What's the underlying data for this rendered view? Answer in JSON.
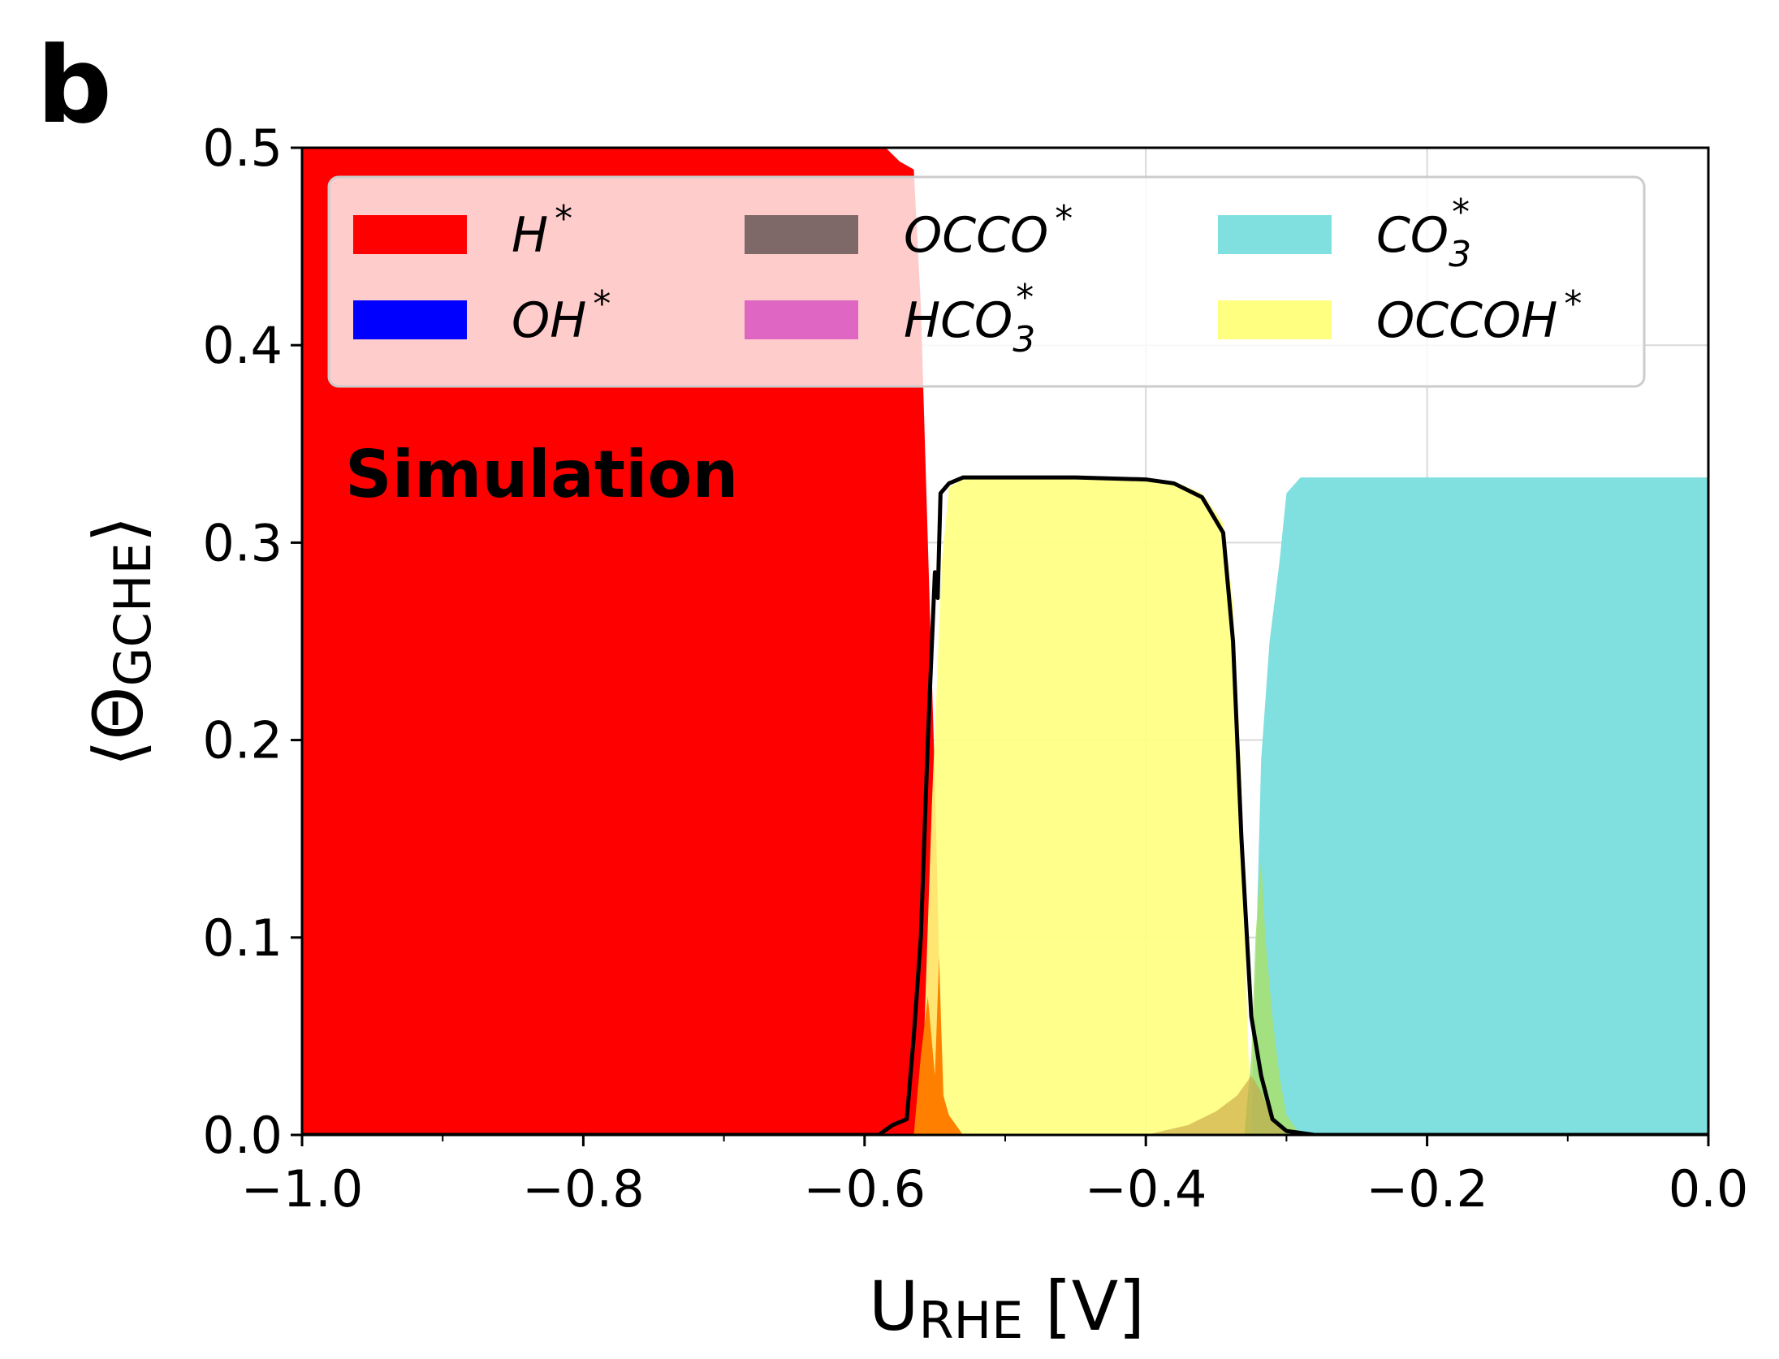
{
  "panel_label": "b",
  "chart_data": {
    "type": "area",
    "title": "",
    "xlabel": {
      "main": "U",
      "sub": "RHE",
      "suffix": " [V]"
    },
    "ylabel": {
      "open": "⟨Θ",
      "sub": "GCHE",
      "close": "⟩"
    },
    "xlim": [
      -1.0,
      0.0
    ],
    "ylim": [
      0.0,
      0.5
    ],
    "grid": true,
    "legend_placement": "top",
    "xticks": [
      -1.0,
      -0.8,
      -0.6,
      -0.4,
      -0.2,
      0.0
    ],
    "xtick_labels": [
      "−1.0",
      "−0.8",
      "−0.6",
      "−0.4",
      "−0.2",
      "0.0"
    ],
    "yticks": [
      0.0,
      0.1,
      0.2,
      0.3,
      0.4,
      0.5
    ],
    "ytick_labels": [
      "0.0",
      "0.1",
      "0.2",
      "0.3",
      "0.4",
      "0.5"
    ],
    "annotation": "Simulation",
    "legend": [
      {
        "id": "H",
        "base": "H",
        "sub": "",
        "sup": "*",
        "color": "#ff0000"
      },
      {
        "id": "OH",
        "base": "OH",
        "sub": "",
        "sup": "*",
        "color": "#0000ff"
      },
      {
        "id": "OCCO",
        "base": "OCCO",
        "sub": "",
        "sup": "*",
        "color": "#7f6868"
      },
      {
        "id": "HCO3",
        "base": "HCO",
        "sub": "3",
        "sup": "*",
        "color": "#e066c4"
      },
      {
        "id": "CO3",
        "base": "CO",
        "sub": "3",
        "sup": "*",
        "color": "#80dfdf"
      },
      {
        "id": "OCCOH",
        "base": "OCCOH",
        "sub": "",
        "sup": "*",
        "color": "#ffff80"
      }
    ],
    "series": [
      {
        "id": "H",
        "color": "#ff0000",
        "opacity": 1.0,
        "points": [
          [
            -1.0,
            0.5
          ],
          [
            -0.585,
            0.5
          ],
          [
            -0.575,
            0.493
          ],
          [
            -0.565,
            0.489
          ],
          [
            -0.56,
            0.42
          ],
          [
            -0.555,
            0.3
          ],
          [
            -0.55,
            0.18
          ],
          [
            -0.546,
            0.06
          ],
          [
            -0.542,
            0.0
          ]
        ]
      },
      {
        "id": "CO3",
        "color": "#80dfdf",
        "opacity": 1.0,
        "points": [
          [
            -0.325,
            0.0
          ],
          [
            -0.318,
            0.19
          ],
          [
            -0.312,
            0.25
          ],
          [
            -0.305,
            0.29
          ],
          [
            -0.3,
            0.325
          ],
          [
            -0.29,
            0.333
          ],
          [
            0.0,
            0.333
          ]
        ]
      },
      {
        "id": "OCCOH",
        "color": "#ffff80",
        "opacity": 0.9,
        "points": [
          [
            -0.56,
            0.0
          ],
          [
            -0.552,
            0.17
          ],
          [
            -0.545,
            0.29
          ],
          [
            -0.54,
            0.328
          ],
          [
            -0.53,
            0.332
          ],
          [
            -0.5,
            0.333
          ],
          [
            -0.4,
            0.333
          ],
          [
            -0.38,
            0.331
          ],
          [
            -0.36,
            0.325
          ],
          [
            -0.345,
            0.31
          ],
          [
            -0.338,
            0.27
          ],
          [
            -0.332,
            0.18
          ],
          [
            -0.328,
            0.06
          ],
          [
            -0.325,
            0.0
          ]
        ]
      },
      {
        "id": "CO3_overlap",
        "color": "#a8e070",
        "opacity": 0.85,
        "points": [
          [
            -0.33,
            0.0
          ],
          [
            -0.325,
            0.04
          ],
          [
            -0.322,
            0.1
          ],
          [
            -0.318,
            0.14
          ],
          [
            -0.315,
            0.1
          ],
          [
            -0.31,
            0.06
          ],
          [
            -0.305,
            0.03
          ],
          [
            -0.3,
            0.01
          ],
          [
            -0.29,
            0.0
          ]
        ]
      },
      {
        "id": "OCCO_tail",
        "color": "#c8a040",
        "opacity": 0.6,
        "points": [
          [
            -0.4,
            0.0
          ],
          [
            -0.37,
            0.005
          ],
          [
            -0.35,
            0.012
          ],
          [
            -0.335,
            0.02
          ],
          [
            -0.325,
            0.03
          ],
          [
            -0.318,
            0.022
          ],
          [
            -0.31,
            0.008
          ],
          [
            -0.3,
            0.0
          ]
        ]
      },
      {
        "id": "H_overlap",
        "color": "#ff8000",
        "opacity": 1.0,
        "points": [
          [
            -0.565,
            0.0
          ],
          [
            -0.56,
            0.04
          ],
          [
            -0.555,
            0.07
          ],
          [
            -0.55,
            0.03
          ],
          [
            -0.547,
            0.09
          ],
          [
            -0.544,
            0.02
          ],
          [
            -0.54,
            0.01
          ],
          [
            -0.53,
            0.0
          ]
        ]
      }
    ],
    "total_line": {
      "color": "#000000",
      "points": [
        [
          -1.0,
          0.0
        ],
        [
          -0.59,
          0.0
        ],
        [
          -0.58,
          0.005
        ],
        [
          -0.57,
          0.008
        ],
        [
          -0.565,
          0.05
        ],
        [
          -0.56,
          0.1
        ],
        [
          -0.555,
          0.2
        ],
        [
          -0.55,
          0.285
        ],
        [
          -0.548,
          0.272
        ],
        [
          -0.546,
          0.325
        ],
        [
          -0.54,
          0.33
        ],
        [
          -0.53,
          0.333
        ],
        [
          -0.45,
          0.333
        ],
        [
          -0.4,
          0.332
        ],
        [
          -0.38,
          0.33
        ],
        [
          -0.36,
          0.323
        ],
        [
          -0.345,
          0.305
        ],
        [
          -0.338,
          0.25
        ],
        [
          -0.332,
          0.15
        ],
        [
          -0.325,
          0.06
        ],
        [
          -0.318,
          0.03
        ],
        [
          -0.31,
          0.008
        ],
        [
          -0.3,
          0.002
        ],
        [
          -0.28,
          0.0
        ],
        [
          0.0,
          0.0
        ]
      ]
    }
  }
}
